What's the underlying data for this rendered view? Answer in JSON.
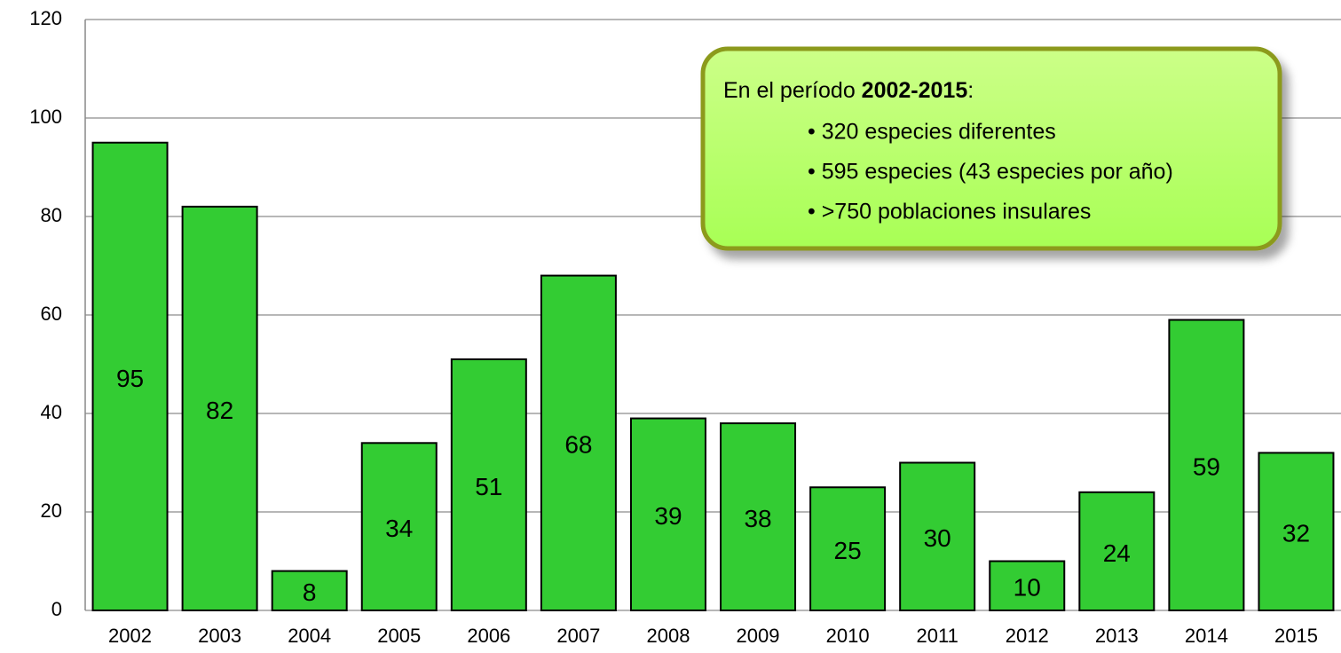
{
  "chart_data": {
    "type": "bar",
    "categories": [
      "2002",
      "2003",
      "2004",
      "2005",
      "2006",
      "2007",
      "2008",
      "2009",
      "2010",
      "2011",
      "2012",
      "2013",
      "2014",
      "2015"
    ],
    "values": [
      95,
      82,
      8,
      34,
      51,
      68,
      39,
      38,
      25,
      30,
      10,
      24,
      59,
      32
    ],
    "color": "#33cc33",
    "ylim": [
      0,
      120
    ],
    "yticks": [
      0,
      20,
      40,
      60,
      80,
      100,
      120
    ],
    "grid": true,
    "annotation": {
      "intro": "En el período ",
      "bold": "2002-2015",
      "after": ":",
      "bullets": [
        "• 320 especies diferentes",
        "• 595 especies (43 especies por año)",
        "• >750 poblaciones insulares"
      ]
    }
  }
}
